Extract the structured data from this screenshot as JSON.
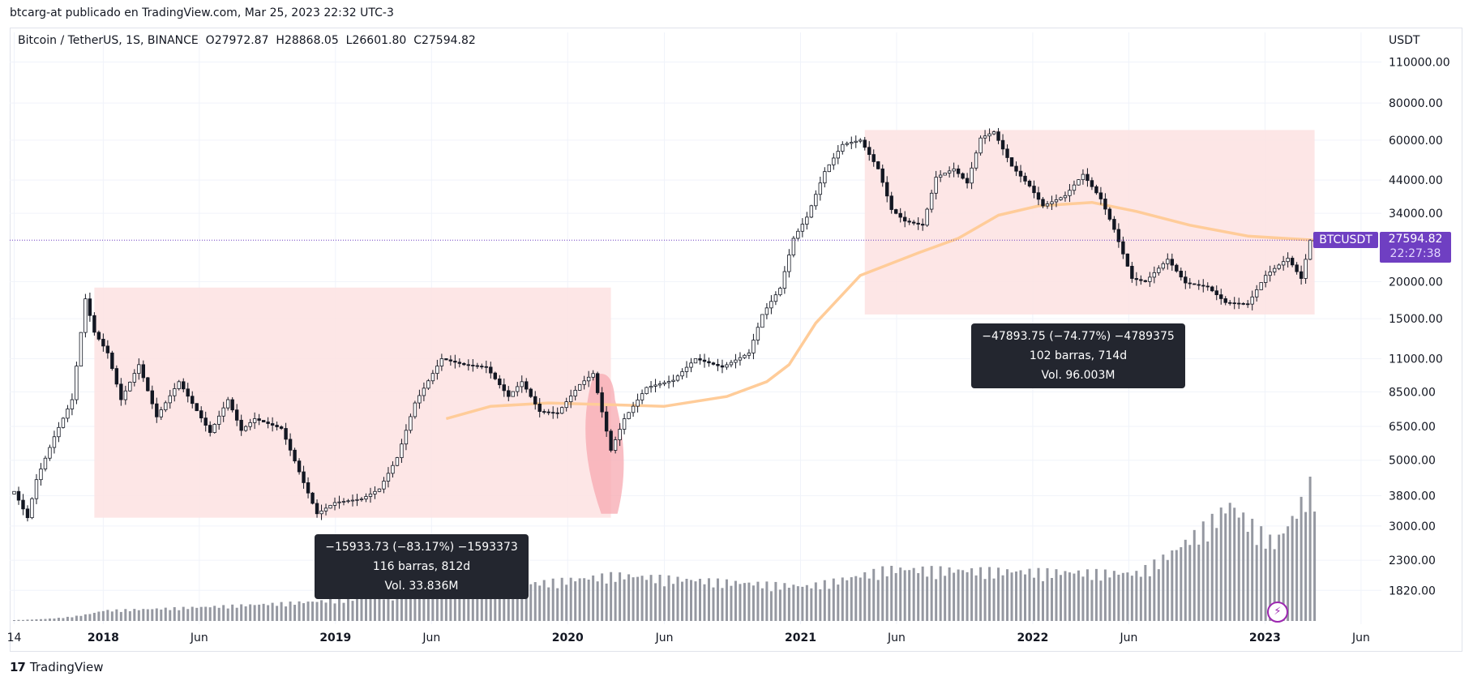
{
  "header": {
    "published_line": "btcarg-at publicado en TradingView.com, Mar 25, 2023 22:32 UTC-3"
  },
  "legend": {
    "symbol": "Bitcoin / TetherUS, 1S, BINANCE",
    "o_label": "O",
    "o_value": "27972.87",
    "h_label": "H",
    "h_value": "28868.05",
    "l_label": "L",
    "l_value": "26601.80",
    "c_label": "C",
    "c_value": "27594.82"
  },
  "price_axis": {
    "currency": "USDT",
    "ticks": [
      "110000.00",
      "80000.00",
      "60000.00",
      "44000.00",
      "34000.00",
      "20000.00",
      "15000.00",
      "11000.00",
      "8500.00",
      "6500.00",
      "5000.00",
      "3800.00",
      "3000.00",
      "2300.00",
      "1820.00"
    ]
  },
  "last_price": {
    "symbol": "BTCUSDT",
    "price": "27594.82",
    "countdown": "22:27:38"
  },
  "measure_1": {
    "line1": "−15933.73 (−83.17%) −1593373",
    "line2": "116 barras, 812d",
    "line3": "Vol. 33.836M"
  },
  "measure_2": {
    "line1": "−47893.75 (−74.77%) −4789375",
    "line2": "102 barras, 714d",
    "line3": "Vol. 96.003M"
  },
  "footer": {
    "brand": "TradingView",
    "logo_mark": "17"
  },
  "colors": {
    "up": "#ffffff",
    "down": "#131722",
    "ma": "#ffcc99",
    "range_fill": "#fde2e2",
    "volume": "#9598a1",
    "price_line": "#6f3fc2",
    "highlight": "#f7a8b0"
  },
  "chart_data": {
    "type": "candlestick",
    "symbol": "BTCUSDT",
    "interval": "1W",
    "scale": "log",
    "ylim": [
      1400,
      130000
    ],
    "xlim": [
      "2017-08-07",
      "2023-07-03"
    ],
    "x_ticks": [
      {
        "label": "14",
        "date": "2017-08-14",
        "bold": false
      },
      {
        "label": "2018",
        "date": "2018-01-01",
        "bold": true
      },
      {
        "label": "Jun",
        "date": "2018-06-01",
        "bold": false
      },
      {
        "label": "2019",
        "date": "2019-01-01",
        "bold": true
      },
      {
        "label": "Jun",
        "date": "2019-06-01",
        "bold": false
      },
      {
        "label": "2020",
        "date": "2020-01-01",
        "bold": true
      },
      {
        "label": "Jun",
        "date": "2020-06-01",
        "bold": false
      },
      {
        "label": "2021",
        "date": "2021-01-01",
        "bold": true
      },
      {
        "label": "Jun",
        "date": "2021-06-01",
        "bold": false
      },
      {
        "label": "2022",
        "date": "2022-01-01",
        "bold": true
      },
      {
        "label": "Jun",
        "date": "2022-06-01",
        "bold": false
      },
      {
        "label": "2023",
        "date": "2023-01-01",
        "bold": true
      },
      {
        "label": "Jun",
        "date": "2023-06-01",
        "bold": false
      }
    ],
    "y_ticks": [
      110000,
      80000,
      60000,
      44000,
      34000,
      20000,
      15000,
      11000,
      8500,
      6500,
      5000,
      3800,
      3000,
      2300,
      1820
    ],
    "price_anchors": [
      [
        "2017-08-14",
        4200
      ],
      [
        "2017-09-11",
        3200
      ],
      [
        "2017-09-25",
        4300
      ],
      [
        "2017-10-23",
        6000
      ],
      [
        "2017-11-20",
        8000
      ],
      [
        "2017-12-11",
        17500
      ],
      [
        "2017-12-25",
        13500
      ],
      [
        "2018-01-15",
        11500
      ],
      [
        "2018-02-05",
        8000
      ],
      [
        "2018-03-05",
        10500
      ],
      [
        "2018-04-02",
        7000
      ],
      [
        "2018-05-07",
        9200
      ],
      [
        "2018-06-25",
        6200
      ],
      [
        "2018-07-23",
        8000
      ],
      [
        "2018-08-13",
        6300
      ],
      [
        "2018-09-03",
        6900
      ],
      [
        "2018-10-15",
        6400
      ],
      [
        "2018-11-19",
        4200
      ],
      [
        "2018-12-10",
        3300
      ],
      [
        "2019-01-07",
        3600
      ],
      [
        "2019-02-18",
        3700
      ],
      [
        "2019-03-18",
        4000
      ],
      [
        "2019-04-15",
        5100
      ],
      [
        "2019-05-13",
        7800
      ],
      [
        "2019-06-24",
        11000
      ],
      [
        "2019-07-29",
        10500
      ],
      [
        "2019-09-02",
        10300
      ],
      [
        "2019-10-07",
        8200
      ],
      [
        "2019-10-28",
        9200
      ],
      [
        "2019-11-25",
        7300
      ],
      [
        "2019-12-23",
        7200
      ],
      [
        "2020-01-27",
        9000
      ],
      [
        "2020-02-17",
        9800
      ],
      [
        "2020-03-16",
        5400
      ],
      [
        "2020-04-06",
        6900
      ],
      [
        "2020-05-11",
        8800
      ],
      [
        "2020-06-22",
        9300
      ],
      [
        "2020-07-27",
        11000
      ],
      [
        "2020-09-07",
        10300
      ],
      [
        "2020-10-19",
        11500
      ],
      [
        "2020-11-09",
        15500
      ],
      [
        "2020-12-07",
        19000
      ],
      [
        "2020-12-28",
        28000
      ],
      [
        "2021-01-18",
        33000
      ],
      [
        "2021-02-15",
        47000
      ],
      [
        "2021-03-15",
        58000
      ],
      [
        "2021-04-12",
        60000
      ],
      [
        "2021-05-10",
        48000
      ],
      [
        "2021-05-31",
        35000
      ],
      [
        "2021-06-21",
        32000
      ],
      [
        "2021-07-19",
        31000
      ],
      [
        "2021-08-09",
        45000
      ],
      [
        "2021-09-06",
        48000
      ],
      [
        "2021-09-27",
        43000
      ],
      [
        "2021-10-18",
        61000
      ],
      [
        "2021-11-08",
        64000
      ],
      [
        "2021-12-06",
        49000
      ],
      [
        "2022-01-03",
        42000
      ],
      [
        "2022-01-24",
        36000
      ],
      [
        "2022-02-28",
        39000
      ],
      [
        "2022-03-28",
        46000
      ],
      [
        "2022-04-25",
        38000
      ],
      [
        "2022-05-16",
        30000
      ],
      [
        "2022-06-13",
        20500
      ],
      [
        "2022-07-04",
        20000
      ],
      [
        "2022-08-08",
        23800
      ],
      [
        "2022-09-05",
        19800
      ],
      [
        "2022-10-10",
        19200
      ],
      [
        "2022-11-07",
        17000
      ],
      [
        "2022-12-12",
        16800
      ],
      [
        "2023-01-09",
        21000
      ],
      [
        "2023-02-13",
        24000
      ],
      [
        "2023-03-06",
        20500
      ],
      [
        "2023-03-20",
        27594.82
      ]
    ],
    "moving_average": [
      [
        "2019-06-24",
        6900
      ],
      [
        "2019-09-02",
        7600
      ],
      [
        "2019-12-02",
        7800
      ],
      [
        "2020-03-02",
        7700
      ],
      [
        "2020-06-01",
        7600
      ],
      [
        "2020-09-07",
        8200
      ],
      [
        "2020-11-09",
        9200
      ],
      [
        "2020-12-14",
        10500
      ],
      [
        "2021-01-25",
        14500
      ],
      [
        "2021-04-05",
        21000
      ],
      [
        "2021-07-05",
        25000
      ],
      [
        "2021-09-06",
        28000
      ],
      [
        "2021-11-08",
        33500
      ],
      [
        "2022-01-10",
        36000
      ],
      [
        "2022-04-04",
        37000
      ],
      [
        "2022-06-13",
        34500
      ],
      [
        "2022-09-05",
        31000
      ],
      [
        "2022-12-05",
        28500
      ],
      [
        "2023-03-20",
        27600
      ]
    ],
    "volume_peaks_millions": [
      [
        "2017-08-14",
        0.1
      ],
      [
        "2018-01-01",
        1.2
      ],
      [
        "2018-11-19",
        2.2
      ],
      [
        "2019-06-24",
        3.5
      ],
      [
        "2020-03-16",
        5.3
      ],
      [
        "2021-01-11",
        4.0
      ],
      [
        "2021-05-17",
        6.0
      ],
      [
        "2022-06-13",
        5.5
      ],
      [
        "2022-09-05",
        9.5
      ],
      [
        "2022-11-07",
        13.5
      ],
      [
        "2023-01-16",
        9.0
      ],
      [
        "2023-03-13",
        15.5
      ]
    ],
    "ranges": [
      {
        "from": "2017-12-18",
        "to": "2020-03-09",
        "high": 19100,
        "low": 3200
      },
      {
        "from": "2021-04-12",
        "to": "2023-03-20",
        "high": 64900,
        "low": 15500
      }
    ]
  }
}
